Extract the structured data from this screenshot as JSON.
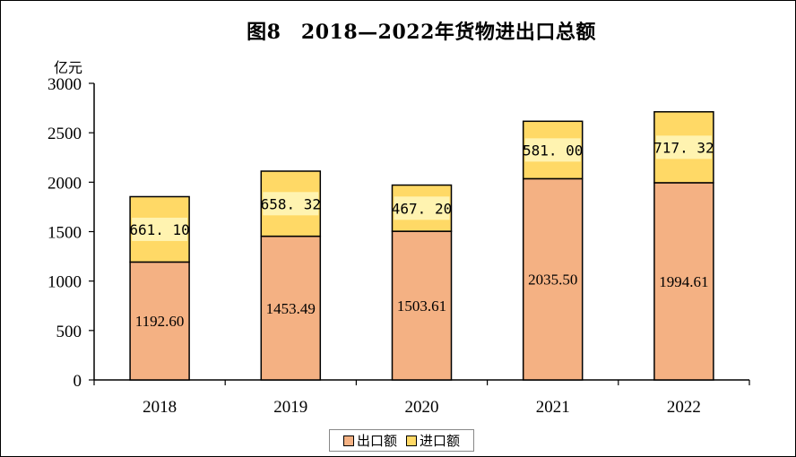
{
  "title": "图8　2018—2022年货物进出口总额",
  "unit_label": "亿元",
  "chart_data": {
    "type": "bar",
    "stacked": true,
    "categories": [
      "2018",
      "2019",
      "2020",
      "2021",
      "2022"
    ],
    "series": [
      {
        "name": "出口额",
        "color": "#F4B183",
        "values": [
          1192.6,
          1453.49,
          1503.61,
          2035.5,
          1994.61
        ],
        "labels": [
          "1192.60",
          "1453.49",
          "1503.61",
          "2035.50",
          "1994.61"
        ]
      },
      {
        "name": "进口额",
        "color": "#FFD966",
        "values": [
          661.1,
          658.32,
          467.2,
          581.0,
          717.32
        ],
        "labels": [
          "661. 10",
          "658. 32",
          "467. 20",
          "581. 00",
          "717. 32"
        ]
      }
    ],
    "ylim": [
      0,
      3000
    ],
    "yticks": [
      0,
      500,
      1000,
      1500,
      2000,
      2500,
      3000
    ],
    "grid": false,
    "legend_position": "bottom"
  }
}
